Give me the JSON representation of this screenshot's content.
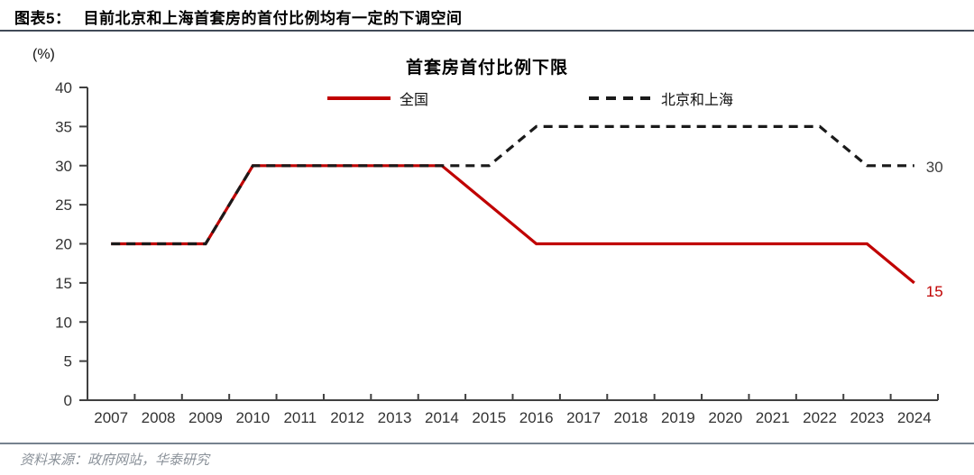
{
  "header": {
    "label": "图表5：",
    "title": "目前北京和上海首套房的首付比例均有一定的下调空间"
  },
  "footer": {
    "source": "资料来源：政府网站，华泰研究"
  },
  "chart_data": {
    "type": "line",
    "title": "首套房首付比例下限",
    "unit_label": "(%)",
    "categories": [
      "2007",
      "2008",
      "2009",
      "2010",
      "2011",
      "2012",
      "2013",
      "2014",
      "2015",
      "2016",
      "2017",
      "2018",
      "2019",
      "2020",
      "2021",
      "2022",
      "2023",
      "2024"
    ],
    "series": [
      {
        "name": "全国",
        "style": "solid",
        "color": "#c00000",
        "values": [
          20,
          20,
          20,
          30,
          30,
          30,
          30,
          30,
          25,
          20,
          20,
          20,
          20,
          20,
          20,
          20,
          20,
          15
        ],
        "end_label": "15",
        "end_label_color": "#c00000"
      },
      {
        "name": "北京和上海",
        "style": "dashed",
        "color": "#1a1a1a",
        "values": [
          20,
          20,
          20,
          30,
          30,
          30,
          30,
          30,
          30,
          35,
          35,
          35,
          35,
          35,
          35,
          35,
          30,
          30
        ],
        "end_label": "30",
        "end_label_color": "#3f3f3f"
      }
    ],
    "ylim": [
      0,
      40
    ],
    "ytick_step": 5,
    "yticks": [
      0,
      5,
      10,
      15,
      20,
      25,
      30,
      35,
      40
    ],
    "grid": false,
    "legend_position": "top",
    "axis_color": "#404040",
    "tick_label_color": "#333333"
  }
}
